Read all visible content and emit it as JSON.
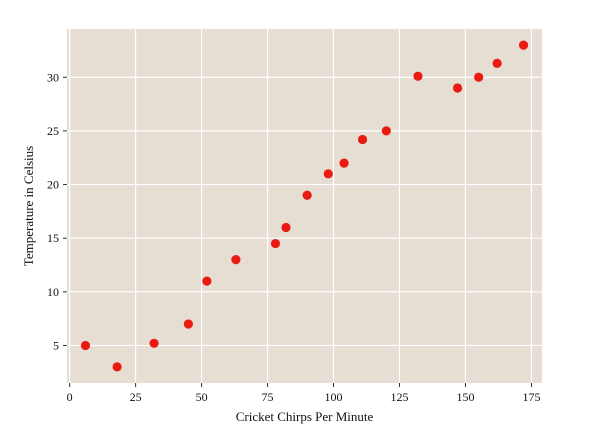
{
  "chart_data": {
    "type": "scatter",
    "xlabel": "Cricket Chirps Per Minute",
    "ylabel": "Temperature in Celsius",
    "xlim": [
      -1,
      179
    ],
    "ylim": [
      1.5,
      34.5
    ],
    "xticks": [
      0,
      25,
      50,
      75,
      100,
      125,
      150,
      175
    ],
    "yticks": [
      5,
      10,
      15,
      20,
      25,
      30
    ],
    "grid": true,
    "colors": {
      "background": "#e6ddd3",
      "grid": "#ffffff",
      "marker": "#e81a12"
    },
    "points": [
      {
        "x": 6,
        "y": 5
      },
      {
        "x": 18,
        "y": 3
      },
      {
        "x": 32,
        "y": 5.2
      },
      {
        "x": 45,
        "y": 7
      },
      {
        "x": 52,
        "y": 11
      },
      {
        "x": 63,
        "y": 13
      },
      {
        "x": 78,
        "y": 14.5
      },
      {
        "x": 82,
        "y": 16
      },
      {
        "x": 90,
        "y": 19
      },
      {
        "x": 98,
        "y": 21
      },
      {
        "x": 104,
        "y": 22
      },
      {
        "x": 111,
        "y": 24.2
      },
      {
        "x": 120,
        "y": 25
      },
      {
        "x": 132,
        "y": 30.1
      },
      {
        "x": 147,
        "y": 29
      },
      {
        "x": 155,
        "y": 30
      },
      {
        "x": 162,
        "y": 31.3
      },
      {
        "x": 172,
        "y": 33
      }
    ]
  }
}
